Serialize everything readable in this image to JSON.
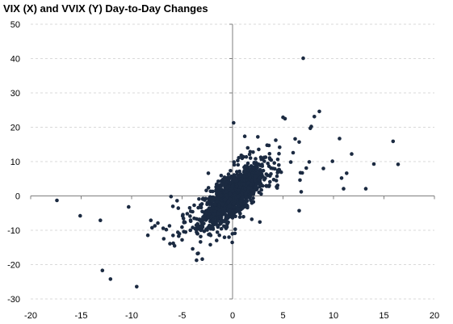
{
  "chart_data": {
    "type": "scatter",
    "title": "VIX (X) and VVIX (Y) Day-to-Day Changes",
    "xlabel": "",
    "ylabel": "",
    "xlim": [
      -20,
      20
    ],
    "ylim": [
      -30,
      50
    ],
    "x_ticks": [
      -20,
      -15,
      -10,
      -5,
      0,
      5,
      10,
      15,
      20
    ],
    "y_ticks": [
      -30,
      -20,
      -10,
      0,
      10,
      20,
      30,
      40,
      50
    ],
    "x_tick_labels": [
      "-20",
      "-15",
      "-10",
      "-5",
      "0",
      "5",
      "10",
      "15",
      "20"
    ],
    "y_tick_labels": [
      "-30",
      "-20",
      "-10",
      "0",
      "10",
      "20",
      "30",
      "40",
      "50"
    ],
    "grid": "horizontal dashed",
    "legend": "none",
    "colors": {
      "marker": "#1b2a41",
      "axis": "#7f7f7f",
      "grid": "#d9d9d9"
    },
    "outliers": [
      {
        "x": 7.0,
        "y": 40.1
      },
      {
        "x": 0.1,
        "y": 21.3
      },
      {
        "x": 5.0,
        "y": 22.9
      },
      {
        "x": 5.2,
        "y": 22.5
      },
      {
        "x": 8.6,
        "y": 24.6
      },
      {
        "x": 8.1,
        "y": 23.1
      },
      {
        "x": 7.8,
        "y": 20.2
      },
      {
        "x": 7.7,
        "y": 19.7
      },
      {
        "x": 10.6,
        "y": 16.7
      },
      {
        "x": 15.9,
        "y": 15.9
      },
      {
        "x": 11.8,
        "y": 12.2
      },
      {
        "x": 16.4,
        "y": 9.2
      },
      {
        "x": 14.0,
        "y": 9.3
      },
      {
        "x": 9.9,
        "y": 10.1
      },
      {
        "x": 9.0,
        "y": 8.0
      },
      {
        "x": 11.3,
        "y": 6.6
      },
      {
        "x": 10.8,
        "y": 5.2
      },
      {
        "x": 11.0,
        "y": 2.1
      },
      {
        "x": 13.2,
        "y": 2.1
      },
      {
        "x": 6.8,
        "y": 1.2
      },
      {
        "x": 6.6,
        "y": -4.3
      },
      {
        "x": 1.5,
        "y": 14.0
      },
      {
        "x": 2.5,
        "y": 17.2
      },
      {
        "x": 3.6,
        "y": 14.7
      },
      {
        "x": 6.2,
        "y": 16.6
      },
      {
        "x": 6.6,
        "y": 15.7
      },
      {
        "x": 4.6,
        "y": 12.3
      },
      {
        "x": 6.0,
        "y": 12.6
      },
      {
        "x": -17.4,
        "y": -1.3
      },
      {
        "x": -15.1,
        "y": -5.8
      },
      {
        "x": -13.1,
        "y": -7.1
      },
      {
        "x": -10.3,
        "y": -3.2
      },
      {
        "x": -12.9,
        "y": -21.7
      },
      {
        "x": -12.1,
        "y": -24.2
      },
      {
        "x": -6.2,
        "y": -13.9
      },
      {
        "x": -5.0,
        "y": -12.8
      },
      {
        "x": -3.4,
        "y": -16.7
      },
      {
        "x": -3.0,
        "y": -18.4
      },
      {
        "x": -2.2,
        "y": -14.2
      },
      {
        "x": -3.6,
        "y": -9.8
      },
      {
        "x": -8.1,
        "y": -7.1
      },
      {
        "x": -7.4,
        "y": -7.9
      },
      {
        "x": -7.7,
        "y": -8.7
      },
      {
        "x": -6.1,
        "y": -0.2
      },
      {
        "x": -5.5,
        "y": -1.4
      },
      {
        "x": -5.9,
        "y": -11.5
      },
      {
        "x": 1.9,
        "y": -6.8
      },
      {
        "x": 2.7,
        "y": -7.6
      },
      {
        "x": -2.4,
        "y": 6.6
      },
      {
        "x": -2.6,
        "y": 1.6
      },
      {
        "x": 6.9,
        "y": 6.7
      },
      {
        "x": 7.6,
        "y": 9.9
      }
    ],
    "cluster": {
      "approx_count": 1600,
      "x_spread": 1.4,
      "y_spread": 3.2,
      "correlation": 0.6,
      "center": [
        0,
        0
      ]
    }
  }
}
